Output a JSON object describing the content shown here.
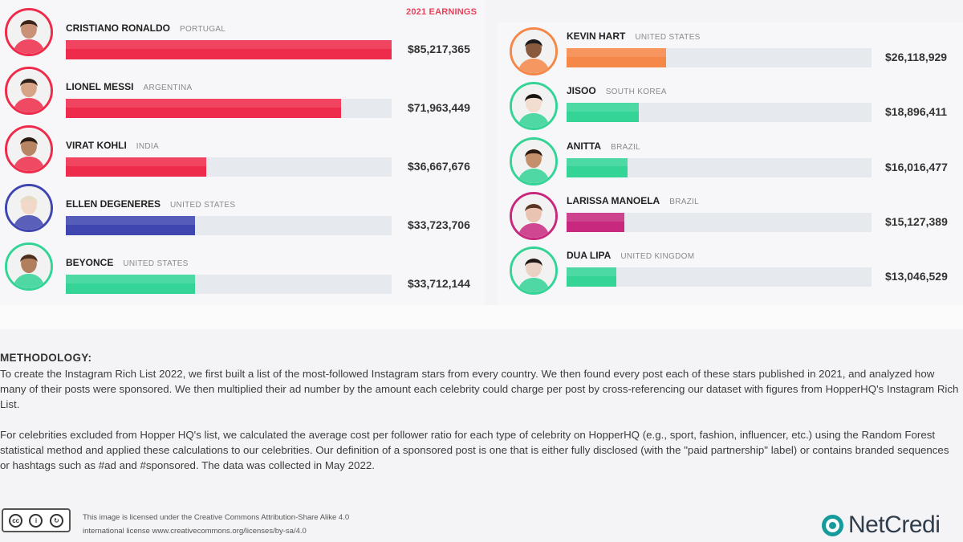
{
  "header": {
    "earnings_label": "2021 EARNINGS"
  },
  "colors": {
    "red": "#ee2b4b",
    "blue": "#3f46b0",
    "green": "#34d497",
    "orange": "#f58748",
    "magenta": "#c8297f",
    "track": "#e6eaee",
    "teal": "#159c9a"
  },
  "chart_data": {
    "type": "bar",
    "orientation": "horizontal",
    "title": "",
    "unit": "USD",
    "series_label": "2021 EARNINGS",
    "xlim": [
      0,
      85217365
    ],
    "categories": [
      "CRISTIANO RONALDO",
      "LIONEL MESSI",
      "VIRAT KOHLI",
      "ELLEN DEGENERES",
      "BEYONCE",
      "KEVIN HART",
      "JISOO",
      "ANITTA",
      "LARISSA MANOELA",
      "DUA LIPA"
    ],
    "values": [
      85217365,
      71963449,
      36667676,
      33723706,
      33712144,
      26118929,
      18896411,
      16016477,
      15127389,
      13046529
    ],
    "rows": [
      {
        "name": "CRISTIANO RONALDO",
        "country": "PORTUGAL",
        "value": 85217365,
        "value_label": "$85,217,365",
        "color": "#ee2b4b",
        "icon": "ronaldo-portrait-icon"
      },
      {
        "name": "LIONEL MESSI",
        "country": "ARGENTINA",
        "value": 71963449,
        "value_label": "$71,963,449",
        "color": "#ee2b4b",
        "icon": "messi-portrait-icon"
      },
      {
        "name": "VIRAT KOHLI",
        "country": "INDIA",
        "value": 36667676,
        "value_label": "$36,667,676",
        "color": "#ee2b4b",
        "icon": "kohli-portrait-icon"
      },
      {
        "name": "ELLEN DEGENERES",
        "country": "UNITED STATES",
        "value": 33723706,
        "value_label": "$33,723,706",
        "color": "#3f46b0",
        "icon": "degeneres-portrait-icon"
      },
      {
        "name": "BEYONCE",
        "country": "UNITED STATES",
        "value": 33712144,
        "value_label": "$33,712,144",
        "color": "#34d497",
        "icon": "beyonce-portrait-icon"
      },
      {
        "name": "KEVIN HART",
        "country": "UNITED STATES",
        "value": 26118929,
        "value_label": "$26,118,929",
        "color": "#f58748",
        "icon": "hart-portrait-icon"
      },
      {
        "name": "JISOO",
        "country": "SOUTH KOREA",
        "value": 18896411,
        "value_label": "$18,896,411",
        "color": "#34d497",
        "icon": "jisoo-portrait-icon"
      },
      {
        "name": "ANITTA",
        "country": "BRAZIL",
        "value": 16016477,
        "value_label": "$16,016,477",
        "color": "#34d497",
        "icon": "anitta-portrait-icon"
      },
      {
        "name": "LARISSA MANOELA",
        "country": "BRAZIL",
        "value": 15127389,
        "value_label": "$15,127,389",
        "color": "#c8297f",
        "icon": "manoela-portrait-icon"
      },
      {
        "name": "DUA LIPA",
        "country": "UNITED KINGDOM",
        "value": 13046529,
        "value_label": "$13,046,529",
        "color": "#34d497",
        "icon": "lipa-portrait-icon"
      }
    ]
  },
  "methodology": {
    "heading": "METHODOLOGY:",
    "paragraph1": "To create the Instagram Rich List 2022, we first built a list of the most-followed Instagram stars from every country. We then found every post each of these stars published in 2021, and analyzed how many of their posts were sponsored. We then multiplied their ad number by the amount each celebrity could charge per post by cross-referencing our dataset with figures from HopperHQ's Instagram Rich List.",
    "paragraph2": "For celebrities excluded from Hopper HQ's list, we calculated the average cost per follower ratio for each type of celebrity on HopperHQ (e.g., sport, fashion, influencer, etc.) using the Random Forest statistical method and applied these calculations to our celebrities. Our definition of a sponsored post is one that is either fully disclosed (with the \"paid partnership\" label) or contains branded sequences or hashtags such as #ad and #sponsored. The data was collected in May 2022."
  },
  "footer": {
    "license_line1": "This image is licensed under the Creative Commons Attribution-Share Alike 4.0",
    "license_line2": "international license www.creativecommons.org/licenses/by-sa/4.0",
    "cc_badge_icon": "creative-commons-by-sa-icon",
    "logo_text": "NetCredi",
    "logo_icon": "netcredit-logo-icon"
  }
}
